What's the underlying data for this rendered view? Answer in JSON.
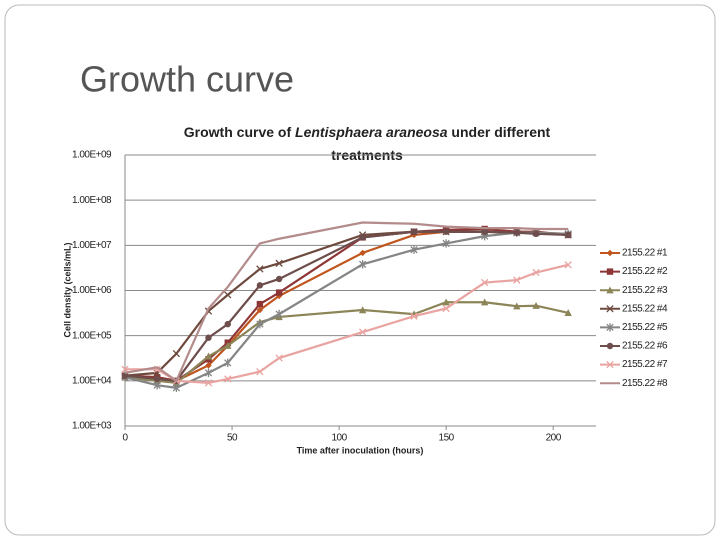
{
  "heading": "Growth curve",
  "chart_data": {
    "type": "line",
    "title": [
      "Growth curve of ",
      "Lentisphaera araneosa",
      " under different",
      "treatments"
    ],
    "xlabel": "Time after inoculation (hours)",
    "ylabel": "Cell density (cells/mL)",
    "x": [
      0,
      15,
      24,
      39,
      48,
      63,
      72,
      111,
      135,
      150,
      168,
      183,
      192,
      207
    ],
    "xlim": [
      0,
      220
    ],
    "xticks": [
      0,
      50,
      100,
      150,
      200
    ],
    "ylim": [
      1000,
      1000000000
    ],
    "log_y": true,
    "grid": true,
    "legend": "right",
    "yticks": [
      {
        "value": 1000,
        "label": "1.00E+03"
      },
      {
        "value": 10000,
        "label": "1.00E+04"
      },
      {
        "value": 100000,
        "label": "1.00E+05"
      },
      {
        "value": 1000000,
        "label": "1.00E+06"
      },
      {
        "value": 10000000,
        "label": "1.00E+07"
      },
      {
        "value": 100000000,
        "label": "1.00E+08"
      },
      {
        "value": 1000000000,
        "label": "1.00E+09"
      }
    ],
    "series": [
      {
        "name": "2155.22 #1",
        "color": "#c0561e",
        "marker": "diamond",
        "values": [
          13000.0,
          12000.0,
          10000.0,
          22000.0,
          60000.0,
          370000.0,
          760000.0,
          6800000.0,
          17000000.0,
          20000000.0,
          20000000.0,
          19000000.0,
          19000000.0,
          18000000.0
        ]
      },
      {
        "name": "2155.22 #2",
        "color": "#8e3636",
        "marker": "square",
        "values": [
          13000.0,
          12000.0,
          10000.0,
          30000.0,
          70000.0,
          500000.0,
          900000.0,
          15000000.0,
          20000000.0,
          22000000.0,
          23000000.0,
          20000000.0,
          20000000.0,
          17000000.0
        ]
      },
      {
        "name": "2155.22 #3",
        "color": "#8c8558",
        "marker": "triangle",
        "values": [
          12000.0,
          10000.0,
          9000.0,
          35000.0,
          60000.0,
          200000.0,
          260000.0,
          370000.0,
          300000.0,
          550000.0,
          550000.0,
          450000.0,
          460000.0,
          320000.0
        ]
      },
      {
        "name": "2155.22 #4",
        "color": "#6e4a3e",
        "marker": "x",
        "values": [
          13000.0,
          15000.0,
          40000.0,
          350000.0,
          800000.0,
          3000000.0,
          4000000.0,
          17000000.0,
          20000000.0,
          20000000.0,
          20000000.0,
          19000000.0,
          19000000.0,
          17000000.0
        ]
      },
      {
        "name": "2155.22 #5",
        "color": "#858585",
        "marker": "star",
        "values": [
          12000.0,
          8000.0,
          7000.0,
          15000.0,
          25000.0,
          180000.0,
          300000.0,
          3800000.0,
          8000000.0,
          11000000.0,
          16000000.0,
          19000000.0,
          19000000.0,
          18000000.0
        ]
      },
      {
        "name": "2155.22 #6",
        "color": "#6e4d4d",
        "marker": "circle",
        "values": [
          13000.0,
          11000.0,
          10000.0,
          90000.0,
          180000.0,
          1300000.0,
          1800000.0,
          15000000.0,
          20000000.0,
          20000000.0,
          20000000.0,
          19000000.0,
          18000000.0,
          17000000.0
        ]
      },
      {
        "name": "2155.22 #7",
        "color": "#e9a3a0",
        "marker": "x",
        "values": [
          18000.0,
          18000.0,
          10000.0,
          9000.0,
          11000.0,
          16000.0,
          32000.0,
          120000.0,
          270000.0,
          400000.0,
          1500000.0,
          1700000.0,
          2500000.0,
          3700000.0
        ]
      },
      {
        "name": "2155.22 #8",
        "color": "#b38b8b",
        "marker": "none",
        "values": [
          15000.0,
          20000.0,
          10000.0,
          400000.0,
          1200000.0,
          11000000.0,
          14000000.0,
          32000000.0,
          30000000.0,
          26000000.0,
          24000000.0,
          24000000.0,
          23000000.0,
          23000000.0
        ]
      }
    ]
  }
}
